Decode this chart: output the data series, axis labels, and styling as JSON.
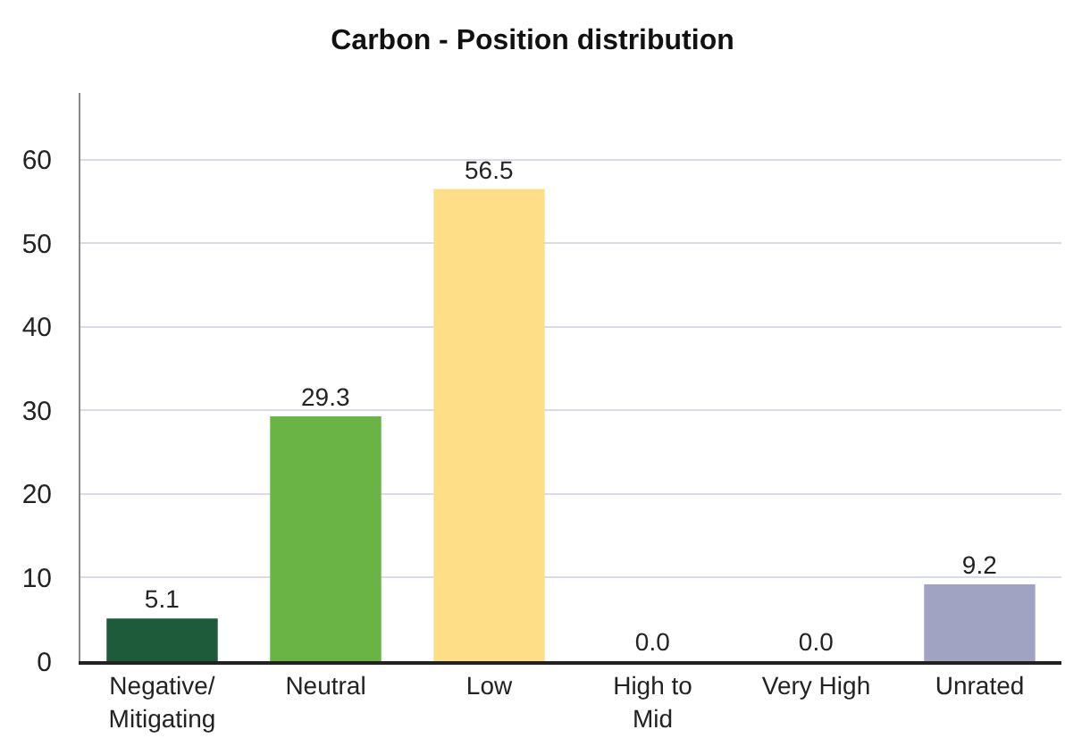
{
  "chart_data": {
    "type": "bar",
    "title": "Carbon - Position distribution",
    "categories": [
      "Negative/\nMitigating",
      "Neutral",
      "Low",
      "High to\nMid",
      "Very High",
      "Unrated"
    ],
    "values": [
      5.1,
      29.3,
      56.5,
      0.0,
      0.0,
      9.2
    ],
    "colors": [
      "#1e5b3b",
      "#6ab446",
      "#fedf88",
      "#c8862a",
      "#2b2b2b",
      "#a0a3c2"
    ],
    "value_labels": [
      "5.1",
      "29.3",
      "56.5",
      "0.0",
      "0.0",
      "9.2"
    ],
    "ylim": [
      0,
      68
    ],
    "yticks": [
      0,
      10,
      20,
      30,
      40,
      50,
      60
    ],
    "grid": "y"
  }
}
